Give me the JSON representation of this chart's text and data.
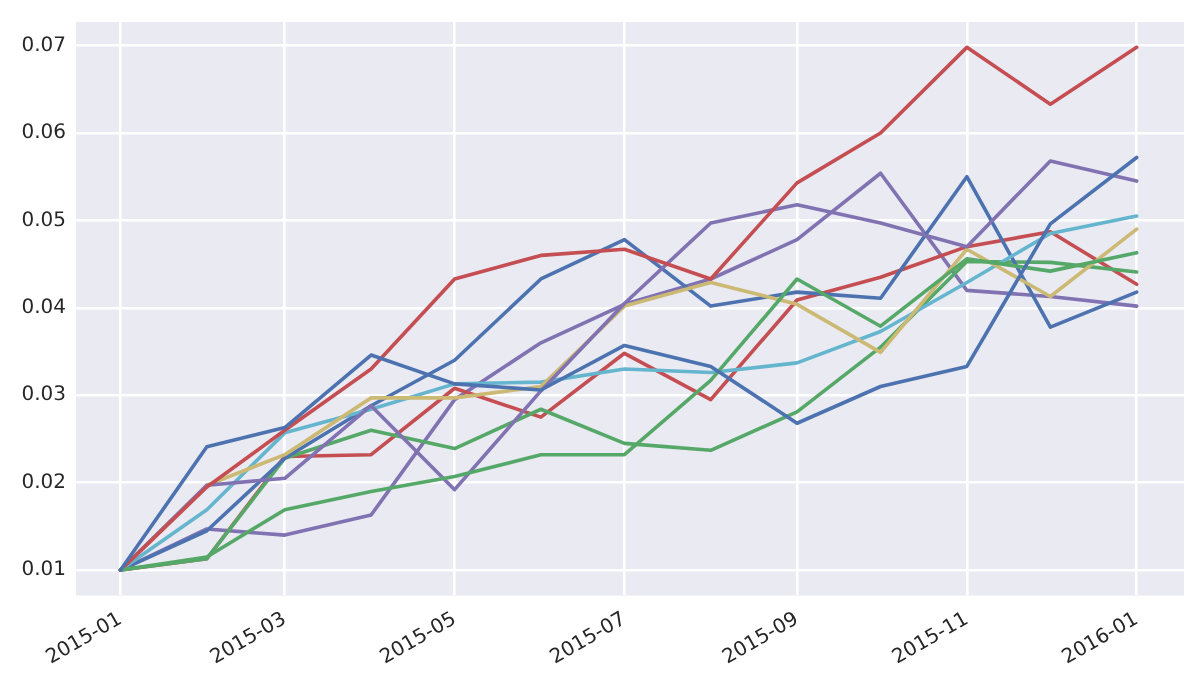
{
  "chart_data": {
    "type": "line",
    "x": [
      "2015-01",
      "2015-02",
      "2015-03",
      "2015-04",
      "2015-05",
      "2015-06",
      "2015-07",
      "2015-08",
      "2015-09",
      "2015-10",
      "2015-11",
      "2015-12",
      "2016-01"
    ],
    "series": [
      {
        "color": "#4c72b0",
        "values": [
          0.01,
          0.0241,
          0.0263,
          0.0346,
          0.0313,
          0.0306,
          0.0357,
          0.0333,
          0.0268,
          0.031,
          0.0333,
          0.0496,
          0.0572
        ]
      },
      {
        "color": "#55a868",
        "values": [
          0.01,
          0.0115,
          0.0169,
          0.019,
          0.0207,
          0.0232,
          0.0232,
          0.0317,
          0.0433,
          0.0379,
          0.0456,
          0.0442,
          0.0463
        ]
      },
      {
        "color": "#c44e52",
        "values": [
          0.01,
          0.0195,
          0.026,
          0.033,
          0.0433,
          0.046,
          0.0467,
          0.0433,
          0.0543,
          0.06,
          0.0698,
          0.0633,
          0.0698
        ]
      },
      {
        "color": "#8172b2",
        "values": [
          0.01,
          0.0197,
          0.0205,
          0.0288,
          0.0192,
          0.0305,
          0.0405,
          0.0497,
          0.0518,
          0.0497,
          0.047,
          0.0568,
          0.0545
        ]
      },
      {
        "color": "#ccb974",
        "values": [
          0.01,
          0.0197,
          0.0232,
          0.0297,
          0.0297,
          0.031,
          0.0402,
          0.0429,
          0.0404,
          0.0349,
          0.0467,
          0.0413,
          0.049
        ]
      },
      {
        "color": "#64b5cd",
        "values": [
          0.01,
          0.0169,
          0.0257,
          0.0284,
          0.0313,
          0.0315,
          0.033,
          0.0326,
          0.0337,
          0.0373,
          0.0429,
          0.0485,
          0.0505
        ]
      },
      {
        "color": "#4c72b0",
        "values": [
          0.01,
          0.0145,
          0.0228,
          0.0288,
          0.034,
          0.0433,
          0.0478,
          0.0402,
          0.0418,
          0.0411,
          0.055,
          0.0378,
          0.0418
        ]
      },
      {
        "color": "#55a868",
        "values": [
          0.01,
          0.0113,
          0.0228,
          0.026,
          0.0239,
          0.0284,
          0.0245,
          0.0237,
          0.0281,
          0.0355,
          0.0453,
          0.0452,
          0.0441
        ]
      },
      {
        "color": "#c44e52",
        "values": [
          0.01,
          0.0113,
          0.023,
          0.0232,
          0.0308,
          0.0275,
          0.0348,
          0.0295,
          0.0409,
          0.0435,
          0.047,
          0.0487,
          0.0427
        ]
      },
      {
        "color": "#8172b2",
        "values": [
          0.01,
          0.0147,
          0.014,
          0.0163,
          0.0295,
          0.036,
          0.0404,
          0.0433,
          0.0478,
          0.0554,
          0.042,
          0.0413,
          0.0402
        ]
      }
    ],
    "xlim": [
      "2014-12-16",
      "2016-01-18"
    ],
    "xticks": [
      "2015-01",
      "2015-03",
      "2015-05",
      "2015-07",
      "2015-09",
      "2015-11",
      "2016-01"
    ],
    "ylim": [
      0.0071,
      0.0727
    ],
    "yticks": [
      0.01,
      0.02,
      0.03,
      0.04,
      0.05,
      0.06,
      0.07
    ],
    "grid": true,
    "marker": "none",
    "line_style": "solid"
  }
}
